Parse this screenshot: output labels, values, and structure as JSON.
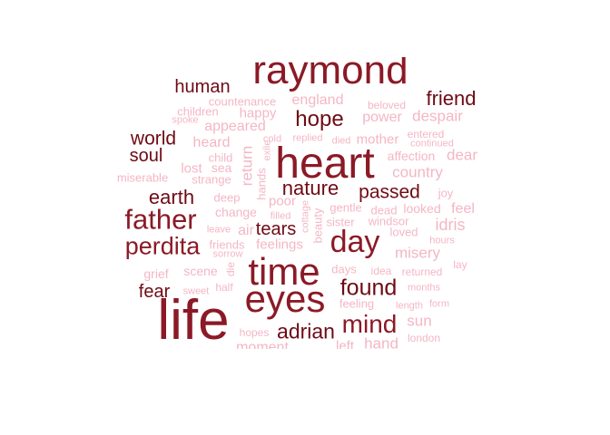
{
  "colors": {
    "darkest": "#8b1a26",
    "dark": "#6f0a14",
    "light": "#f4b6c5",
    "lighter": "#f6c4d0"
  },
  "words": [
    {
      "text": "raymond",
      "tier": 1
    },
    {
      "text": "heart",
      "tier": 1
    },
    {
      "text": "time",
      "tier": 1
    },
    {
      "text": "eyes",
      "tier": 1
    },
    {
      "text": "life",
      "tier": 1
    },
    {
      "text": "human",
      "tier": 2
    },
    {
      "text": "friend",
      "tier": 2
    },
    {
      "text": "hope",
      "tier": 2
    },
    {
      "text": "world",
      "tier": 2
    },
    {
      "text": "soul",
      "tier": 2
    },
    {
      "text": "earth",
      "tier": 2
    },
    {
      "text": "father",
      "tier": 2
    },
    {
      "text": "nature",
      "tier": 2
    },
    {
      "text": "passed",
      "tier": 2
    },
    {
      "text": "perdita",
      "tier": 2
    },
    {
      "text": "tears",
      "tier": 2
    },
    {
      "text": "day",
      "tier": 2
    },
    {
      "text": "found",
      "tier": 2
    },
    {
      "text": "fear",
      "tier": 2
    },
    {
      "text": "mind",
      "tier": 2
    },
    {
      "text": "adrian",
      "tier": 2
    },
    {
      "text": "countenance",
      "tier": 3
    },
    {
      "text": "england",
      "tier": 3
    },
    {
      "text": "beloved",
      "tier": 3
    },
    {
      "text": "children",
      "tier": 3
    },
    {
      "text": "happy",
      "tier": 3
    },
    {
      "text": "power",
      "tier": 3
    },
    {
      "text": "despair",
      "tier": 3
    },
    {
      "text": "spoke",
      "tier": 3
    },
    {
      "text": "appeared",
      "tier": 3
    },
    {
      "text": "entered",
      "tier": 3
    },
    {
      "text": "cold",
      "tier": 3
    },
    {
      "text": "replied",
      "tier": 3
    },
    {
      "text": "died",
      "tier": 3
    },
    {
      "text": "mother",
      "tier": 3
    },
    {
      "text": "continued",
      "tier": 3
    },
    {
      "text": "heard",
      "tier": 3
    },
    {
      "text": "exile",
      "tier": 3
    },
    {
      "text": "affection",
      "tier": 3
    },
    {
      "text": "dear",
      "tier": 3
    },
    {
      "text": "child",
      "tier": 3
    },
    {
      "text": "sea",
      "tier": 3
    },
    {
      "text": "country",
      "tier": 3
    },
    {
      "text": "lost",
      "tier": 3
    },
    {
      "text": "return",
      "tier": 3
    },
    {
      "text": "miserable",
      "tier": 3
    },
    {
      "text": "strange",
      "tier": 3
    },
    {
      "text": "hands",
      "tier": 3
    },
    {
      "text": "joy",
      "tier": 3
    },
    {
      "text": "deep",
      "tier": 3
    },
    {
      "text": "poor",
      "tier": 3
    },
    {
      "text": "cottage",
      "tier": 3
    },
    {
      "text": "gentle",
      "tier": 3
    },
    {
      "text": "dead",
      "tier": 3
    },
    {
      "text": "looked",
      "tier": 3
    },
    {
      "text": "feel",
      "tier": 3
    },
    {
      "text": "change",
      "tier": 3
    },
    {
      "text": "filled",
      "tier": 3
    },
    {
      "text": "beauty",
      "tier": 3
    },
    {
      "text": "sister",
      "tier": 3
    },
    {
      "text": "windsor",
      "tier": 3
    },
    {
      "text": "idris",
      "tier": 3
    },
    {
      "text": "leave",
      "tier": 3
    },
    {
      "text": "air",
      "tier": 3
    },
    {
      "text": "loved",
      "tier": 3
    },
    {
      "text": "friends",
      "tier": 3
    },
    {
      "text": "feelings",
      "tier": 3
    },
    {
      "text": "hours",
      "tier": 3
    },
    {
      "text": "sorrow",
      "tier": 3
    },
    {
      "text": "misery",
      "tier": 3
    },
    {
      "text": "die",
      "tier": 3
    },
    {
      "text": "grief",
      "tier": 3
    },
    {
      "text": "scene",
      "tier": 3
    },
    {
      "text": "days",
      "tier": 3
    },
    {
      "text": "idea",
      "tier": 3
    },
    {
      "text": "returned",
      "tier": 3
    },
    {
      "text": "lay",
      "tier": 3
    },
    {
      "text": "sweet",
      "tier": 3
    },
    {
      "text": "half",
      "tier": 3
    },
    {
      "text": "months",
      "tier": 3
    },
    {
      "text": "feeling",
      "tier": 3
    },
    {
      "text": "length",
      "tier": 3
    },
    {
      "text": "form",
      "tier": 3
    },
    {
      "text": "sun",
      "tier": 3
    },
    {
      "text": "hopes",
      "tier": 3
    },
    {
      "text": "london",
      "tier": 3
    },
    {
      "text": "moment",
      "tier": 3
    },
    {
      "text": "left",
      "tier": 3
    },
    {
      "text": "hand",
      "tier": 3
    }
  ]
}
